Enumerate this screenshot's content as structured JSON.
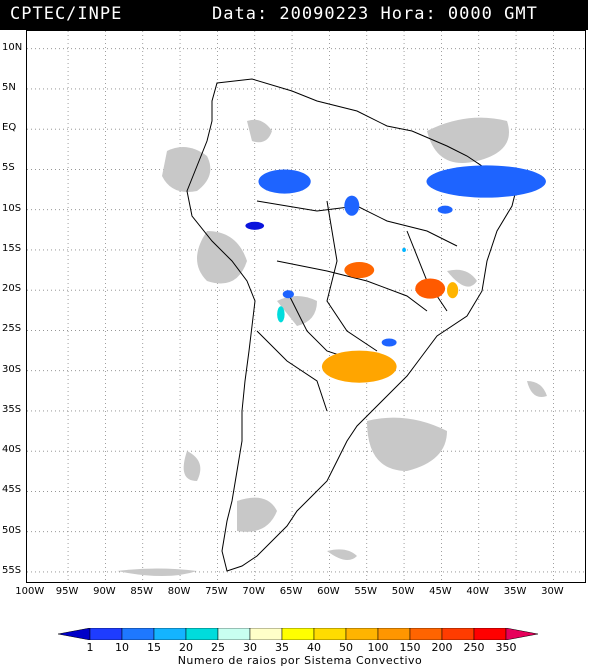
{
  "header": {
    "left": "CPTEC/INPE",
    "right": "Data: 20090223 Hora: 0000 GMT"
  },
  "map": {
    "lat_labels": [
      "10N",
      "5N",
      "EQ",
      "5S",
      "10S",
      "15S",
      "20S",
      "25S",
      "30S",
      "35S",
      "40S",
      "45S",
      "50S",
      "55S"
    ],
    "lon_labels": [
      "100W",
      "95W",
      "90W",
      "85W",
      "80W",
      "75W",
      "70W",
      "65W",
      "60W",
      "55W",
      "50W",
      "45W",
      "40W",
      "35W",
      "30W"
    ],
    "clusters": [
      {
        "name": "amazon-west",
        "color": "#1e64ff",
        "lat": -6.5,
        "lon": -66,
        "w": 7,
        "h": 3
      },
      {
        "name": "peru",
        "color": "#0a14dc",
        "lat": -12,
        "lon": -70,
        "w": 2.5,
        "h": 1
      },
      {
        "name": "mato-grosso",
        "color": "#1e64ff",
        "lat": -9.5,
        "lon": -57,
        "w": 2,
        "h": 2.5
      },
      {
        "name": "northeast",
        "color": "#1e64ff",
        "lat": -6.5,
        "lon": -39,
        "w": 16,
        "h": 4
      },
      {
        "name": "bahia",
        "color": "#1e64ff",
        "lat": -10,
        "lon": -44.5,
        "w": 2,
        "h": 1
      },
      {
        "name": "goias",
        "color": "#ff6600",
        "lat": -17.5,
        "lon": -56,
        "w": 4,
        "h": 2
      },
      {
        "name": "minas",
        "color": "#ff5a00",
        "lat": -19.8,
        "lon": -46.5,
        "w": 4,
        "h": 2.5
      },
      {
        "name": "minas-east",
        "color": "#ffb400",
        "lat": -20,
        "lon": -43.5,
        "w": 1.5,
        "h": 2
      },
      {
        "name": "bolivia-south",
        "color": "#1e64ff",
        "lat": -20.5,
        "lon": -65.5,
        "w": 1.5,
        "h": 1
      },
      {
        "name": "argentina-nw",
        "color": "#00dcdc",
        "lat": -23,
        "lon": -66.5,
        "w": 1,
        "h": 2
      },
      {
        "name": "parana",
        "color": "#1e64ff",
        "lat": -26.5,
        "lon": -52,
        "w": 2,
        "h": 1
      },
      {
        "name": "rio-grande",
        "color": "#ffa500",
        "lat": -29.5,
        "lon": -56,
        "w": 10,
        "h": 4
      },
      {
        "name": "ms-small",
        "color": "#00b4ff",
        "lat": -15,
        "lon": -50,
        "w": 0.5,
        "h": 0.5
      }
    ]
  },
  "colorbar": {
    "ticks": [
      "1",
      "10",
      "15",
      "20",
      "25",
      "30",
      "35",
      "40",
      "50",
      "100",
      "150",
      "200",
      "250",
      "350"
    ],
    "colors": [
      "#0000c8",
      "#1e3cff",
      "#1e78ff",
      "#14b4ff",
      "#00dcdc",
      "#c8fff0",
      "#ffffc8",
      "#ffff00",
      "#ffdc00",
      "#ffb400",
      "#ff9600",
      "#ff6400",
      "#ff3c00",
      "#ff0000",
      "#e6005a"
    ],
    "title": "Numero de raios por Sistema Convectivo"
  }
}
